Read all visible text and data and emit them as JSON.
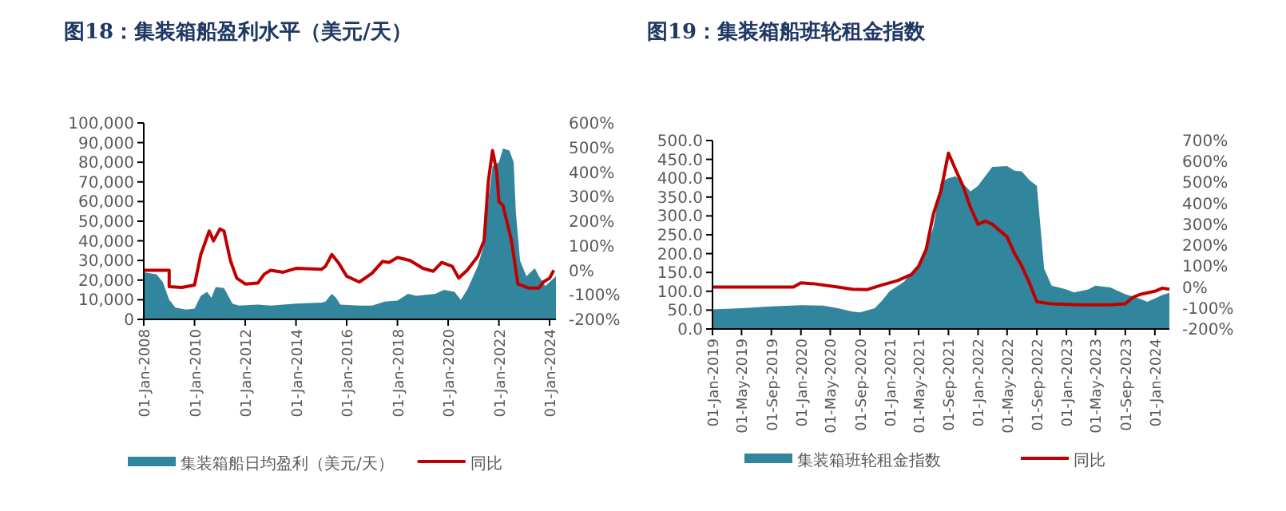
{
  "chart_data": [
    {
      "type": "area",
      "title": "图18：集装箱船盈利水平（美元/天）",
      "legend": "bottom",
      "grid": false,
      "xlim": [
        "2008-01",
        "2024-04"
      ],
      "xticks": [
        {
          "value": "2008-01",
          "label": "01-Jan-2008"
        },
        {
          "value": "2010-01",
          "label": "01-Jan-2010"
        },
        {
          "value": "2012-01",
          "label": "01-Jan-2012"
        },
        {
          "value": "2014-01",
          "label": "01-Jan-2014"
        },
        {
          "value": "2016-01",
          "label": "01-Jan-2016"
        },
        {
          "value": "2018-01",
          "label": "01-Jan-2018"
        },
        {
          "value": "2020-01",
          "label": "01-Jan-2020"
        },
        {
          "value": "2022-01",
          "label": "01-Jan-2022"
        },
        {
          "value": "2024-01",
          "label": "01-Jan-2024"
        }
      ],
      "ylim": [
        0,
        100000
      ],
      "yticks": [
        0,
        {
          "value": 10000,
          "label": "10,000"
        },
        {
          "value": 20000,
          "label": "20,000"
        },
        {
          "value": 30000,
          "label": "30,000"
        },
        {
          "value": 40000,
          "label": "40,000"
        },
        {
          "value": 50000,
          "label": "50,000"
        },
        {
          "value": 60000,
          "label": "60,000"
        },
        {
          "value": 70000,
          "label": "70,000"
        },
        {
          "value": 80000,
          "label": "80,000"
        },
        {
          "value": 90000,
          "label": "90,000"
        },
        {
          "value": 100000,
          "label": "100,000"
        }
      ],
      "y2lim": [
        -200,
        600
      ],
      "y2ticks": [
        {
          "value": -200,
          "label": "-200%"
        },
        {
          "value": -100,
          "label": "-100%"
        },
        {
          "value": 0,
          "label": "0%"
        },
        {
          "value": 100,
          "label": "100%"
        },
        {
          "value": 200,
          "label": "200%"
        },
        {
          "value": 300,
          "label": "300%"
        },
        {
          "value": 400,
          "label": "400%"
        },
        {
          "value": 500,
          "label": "500%"
        },
        {
          "value": 600,
          "label": "600%"
        }
      ],
      "series": [
        {
          "name": "集装箱船日均盈利（美元/天）",
          "type": "area",
          "color": "#31859c",
          "x": [
            "2008-01",
            "2008-07",
            "2008-10",
            "2009-01",
            "2009-04",
            "2009-09",
            "2010-01",
            "2010-04",
            "2010-07",
            "2010-09",
            "2010-11",
            "2011-03",
            "2011-07",
            "2011-10",
            "2012-07",
            "2013-01",
            "2014-01",
            "2015-01",
            "2015-03",
            "2015-06",
            "2015-08",
            "2015-10",
            "2016-07",
            "2017-01",
            "2017-07",
            "2018-01",
            "2018-06",
            "2018-10",
            "2019-07",
            "2019-11",
            "2020-04",
            "2020-07",
            "2020-10",
            "2021-03",
            "2021-06",
            "2021-08",
            "2021-10",
            "2022-01",
            "2022-03",
            "2022-06",
            "2022-08",
            "2022-09",
            "2022-11",
            "2023-02",
            "2023-06",
            "2023-08",
            "2023-11",
            "2024-02",
            "2024-04"
          ],
          "values": [
            24000,
            23000,
            19000,
            10000,
            6000,
            5000,
            5500,
            12000,
            14000,
            11000,
            16500,
            16000,
            8000,
            7000,
            7500,
            7000,
            8000,
            8500,
            9000,
            13000,
            11000,
            7500,
            7000,
            7000,
            9000,
            9500,
            13000,
            12000,
            13000,
            15000,
            14000,
            10000,
            15000,
            27000,
            38000,
            60000,
            78000,
            80000,
            87000,
            86000,
            80000,
            55000,
            30000,
            22000,
            26000,
            22000,
            17000,
            20000,
            22000
          ]
        },
        {
          "name": "同比",
          "type": "line",
          "axis": "y2",
          "color": "#c00000",
          "x": [
            "2008-01",
            "2009-01",
            "2009-01",
            "2009-07",
            "2010-01",
            "2010-04",
            "2010-08",
            "2010-10",
            "2011-01",
            "2011-03",
            "2011-06",
            "2011-09",
            "2012-01",
            "2012-07",
            "2012-10",
            "2013-01",
            "2013-07",
            "2014-01",
            "2015-01",
            "2015-03",
            "2015-06",
            "2015-09",
            "2016-01",
            "2016-07",
            "2017-01",
            "2017-06",
            "2017-09",
            "2018-01",
            "2018-07",
            "2019-01",
            "2019-06",
            "2019-10",
            "2020-03",
            "2020-06",
            "2020-10",
            "2021-03",
            "2021-06",
            "2021-08",
            "2021-10",
            "2021-12",
            "2022-01",
            "2022-03",
            "2022-07",
            "2022-10",
            "2023-03",
            "2023-08",
            "2023-10",
            "2024-01",
            "2024-03"
          ],
          "values": [
            0,
            0,
            -67,
            -70,
            -60,
            64,
            160,
            120,
            168,
            160,
            40,
            -32,
            -56,
            -52,
            -16,
            0,
            -8,
            8,
            4,
            16,
            64,
            32,
            -24,
            -48,
            -12,
            36,
            32,
            52,
            40,
            8,
            -4,
            32,
            16,
            -32,
            0,
            56,
            120,
            360,
            488,
            400,
            280,
            264,
            120,
            -56,
            -72,
            -72,
            -48,
            -32,
            0
          ]
        }
      ]
    },
    {
      "type": "area",
      "title": "图19：集装箱船班轮租金指数",
      "legend": "bottom",
      "grid": false,
      "xlim": [
        "2019-01",
        "2024-03"
      ],
      "xticks": [
        {
          "value": "2019-01",
          "label": "01-Jan-2019"
        },
        {
          "value": "2019-05",
          "label": "01-May-2019"
        },
        {
          "value": "2019-09",
          "label": "01-Sep-2019"
        },
        {
          "value": "2020-01",
          "label": "01-Jan-2020"
        },
        {
          "value": "2020-05",
          "label": "01-May-2020"
        },
        {
          "value": "2020-09",
          "label": "01-Sep-2020"
        },
        {
          "value": "2021-01",
          "label": "01-Jan-2021"
        },
        {
          "value": "2021-05",
          "label": "01-May-2021"
        },
        {
          "value": "2021-09",
          "label": "01-Sep-2021"
        },
        {
          "value": "2022-01",
          "label": "01-Jan-2022"
        },
        {
          "value": "2022-05",
          "label": "01-May-2022"
        },
        {
          "value": "2022-09",
          "label": "01-Sep-2022"
        },
        {
          "value": "2023-01",
          "label": "01-Jan-2023"
        },
        {
          "value": "2023-05",
          "label": "01-May-2023"
        },
        {
          "value": "2023-09",
          "label": "01-Sep-2023"
        },
        {
          "value": "2024-01",
          "label": "01-Jan-2024"
        }
      ],
      "ylim": [
        0,
        500
      ],
      "yticks": [
        {
          "value": 0,
          "label": "0.0"
        },
        {
          "value": 50,
          "label": "50.0"
        },
        {
          "value": 100,
          "label": "100.0"
        },
        {
          "value": 150,
          "label": "150.0"
        },
        {
          "value": 200,
          "label": "200.0"
        },
        {
          "value": 250,
          "label": "250.0"
        },
        {
          "value": 300,
          "label": "300.0"
        },
        {
          "value": 350,
          "label": "350.0"
        },
        {
          "value": 400,
          "label": "400.0"
        },
        {
          "value": 450,
          "label": "450.0"
        },
        {
          "value": 500,
          "label": "500.0"
        }
      ],
      "y2lim": [
        -200,
        700
      ],
      "y2ticks": [
        {
          "value": -200,
          "label": "-200%"
        },
        {
          "value": -100,
          "label": "-100%"
        },
        {
          "value": 0,
          "label": "0%"
        },
        {
          "value": 100,
          "label": "100%"
        },
        {
          "value": 200,
          "label": "200%"
        },
        {
          "value": 300,
          "label": "300%"
        },
        {
          "value": 400,
          "label": "400%"
        },
        {
          "value": 500,
          "label": "500%"
        },
        {
          "value": 600,
          "label": "600%"
        },
        {
          "value": 700,
          "label": "700%"
        }
      ],
      "series": [
        {
          "name": "集装箱班轮租金指数",
          "type": "area",
          "color": "#31859c",
          "x": [
            "2019-01",
            "2019-05",
            "2019-09",
            "2020-01",
            "2020-04",
            "2020-06",
            "2020-08",
            "2020-09",
            "2020-11",
            "2020-12",
            "2021-01",
            "2021-03",
            "2021-05",
            "2021-06",
            "2021-07",
            "2021-08",
            "2021-09",
            "2021-10",
            "2021-11",
            "2021-12",
            "2022-01",
            "2022-03",
            "2022-05",
            "2022-06",
            "2022-07",
            "2022-08",
            "2022-09",
            "2022-10",
            "2022-11",
            "2023-01",
            "2023-02",
            "2023-04",
            "2023-05",
            "2023-07",
            "2023-09",
            "2023-11",
            "2023-12",
            "2024-02",
            "2024-03"
          ],
          "values": [
            52,
            55,
            60,
            63,
            62,
            55,
            46,
            44,
            55,
            75,
            100,
            125,
            170,
            215,
            270,
            390,
            400,
            405,
            385,
            365,
            380,
            430,
            432,
            420,
            418,
            395,
            380,
            160,
            115,
            105,
            97,
            105,
            115,
            110,
            92,
            80,
            72,
            90,
            96
          ]
        },
        {
          "name": "同比",
          "type": "line",
          "axis": "y2",
          "color": "#c00000",
          "x": [
            "2019-01",
            "2019-12",
            "2020-01",
            "2020-03",
            "2020-06",
            "2020-08",
            "2020-10",
            "2020-12",
            "2021-02",
            "2021-04",
            "2021-05",
            "2021-06",
            "2021-07",
            "2021-08",
            "2021-09",
            "2021-10",
            "2021-11",
            "2021-12",
            "2022-01",
            "2022-02",
            "2022-03",
            "2022-05",
            "2022-06",
            "2022-07",
            "2022-08",
            "2022-09",
            "2022-11",
            "2023-03",
            "2023-07",
            "2023-09",
            "2023-10",
            "2023-11",
            "2024-01",
            "2024-02",
            "2024-03"
          ],
          "values": [
            0,
            0,
            20,
            15,
            0,
            -10,
            -12,
            10,
            30,
            60,
            100,
            180,
            350,
            460,
            640,
            560,
            480,
            380,
            300,
            315,
            300,
            240,
            160,
            100,
            20,
            -70,
            -80,
            -85,
            -85,
            -80,
            -50,
            -35,
            -20,
            -5,
            -10
          ]
        }
      ]
    }
  ]
}
